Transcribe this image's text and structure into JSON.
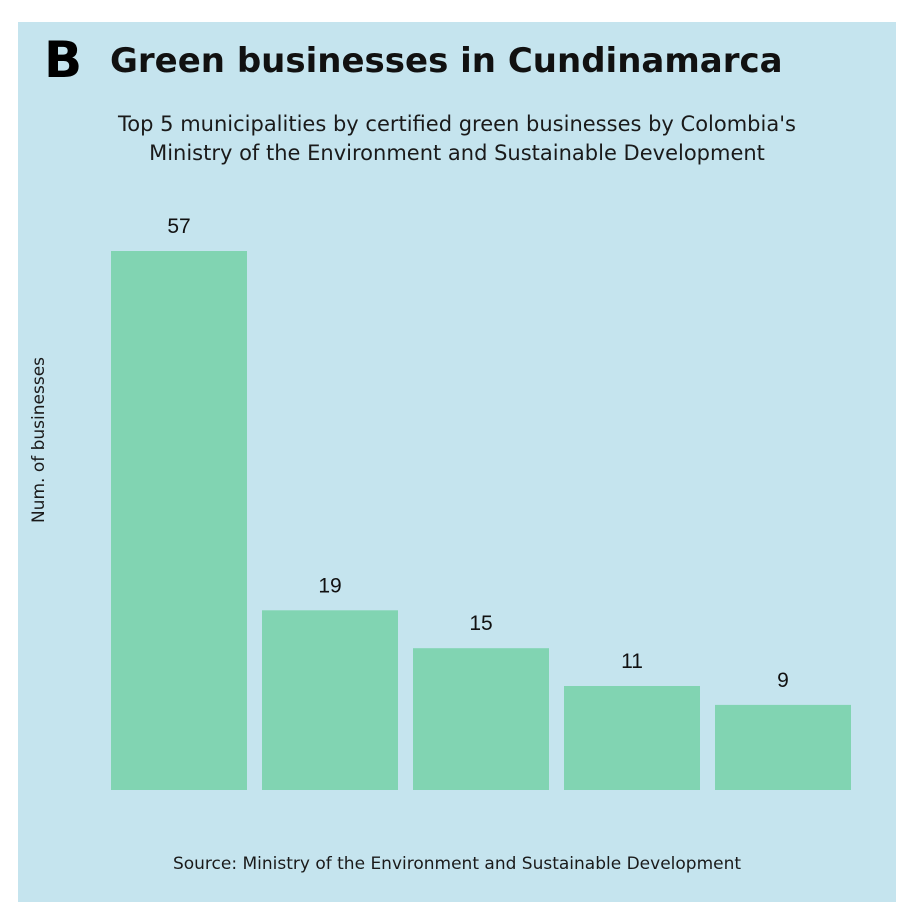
{
  "panel_label": "B",
  "chart_data": {
    "type": "bar",
    "title": "Green businesses in Cundinamarca",
    "subtitle": [
      "Top 5 municipalities by certified green businesses by Colombia's",
      "Ministry of the Environment and Sustainable Development"
    ],
    "ylabel": "Num. of businesses",
    "xlabel": "",
    "categories": [
      "",
      "",
      "",
      "",
      ""
    ],
    "values": [
      57,
      19,
      15,
      11,
      9
    ],
    "data_labels": [
      "57",
      "19",
      "15",
      "11",
      "9"
    ],
    "ylim": [
      0,
      57
    ],
    "grid": false,
    "bar_color": "#81d4b2",
    "background_color": "#c5e4ee",
    "source": "Source: Ministry of the Environment and Sustainable Development"
  }
}
